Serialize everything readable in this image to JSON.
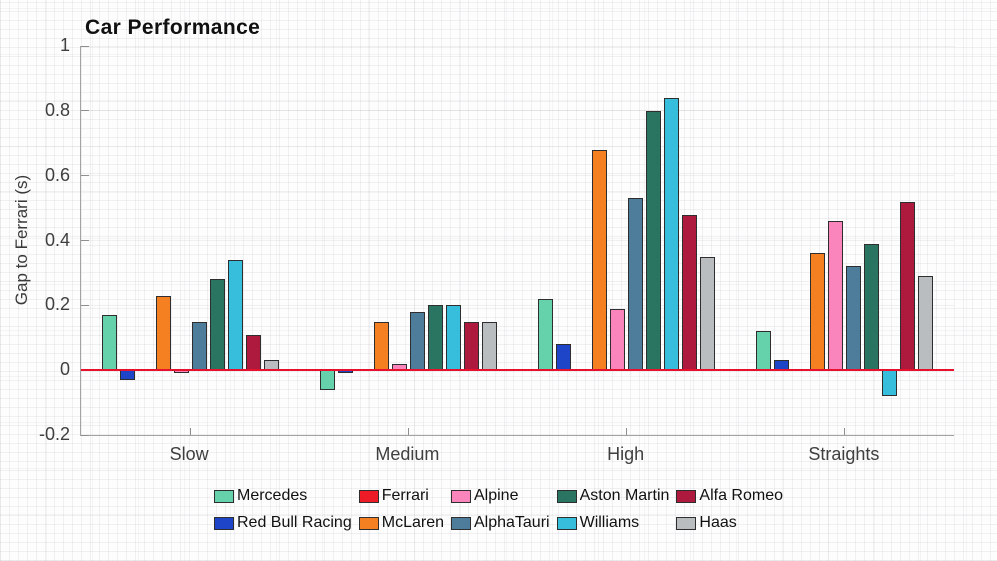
{
  "chart_data": {
    "type": "bar",
    "title": "Car Performance",
    "ylabel": "Gap to Ferrari (s)",
    "xlabel": "",
    "categories": [
      "Slow",
      "Medium",
      "High",
      "Straights"
    ],
    "series": [
      {
        "name": "Mercedes",
        "color": "#66D2AC",
        "values": [
          0.17,
          -0.06,
          0.22,
          0.12
        ]
      },
      {
        "name": "Red Bull Racing",
        "color": "#1E45C8",
        "values": [
          -0.03,
          -0.01,
          0.08,
          0.03
        ]
      },
      {
        "name": "Ferrari",
        "color": "#EC1B25",
        "values": [
          0,
          0,
          0,
          0
        ]
      },
      {
        "name": "McLaren",
        "color": "#F58021",
        "values": [
          0.23,
          0.15,
          0.68,
          0.36
        ]
      },
      {
        "name": "Alpine",
        "color": "#F985BC",
        "values": [
          -0.01,
          0.02,
          0.19,
          0.46
        ]
      },
      {
        "name": "AlphaTauri",
        "color": "#4E7C9B",
        "values": [
          0.15,
          0.18,
          0.53,
          0.32
        ]
      },
      {
        "name": "Aston Martin",
        "color": "#2A7462",
        "values": [
          0.28,
          0.2,
          0.8,
          0.39
        ]
      },
      {
        "name": "Williams",
        "color": "#37BEDD",
        "values": [
          0.34,
          0.2,
          0.84,
          -0.08
        ]
      },
      {
        "name": "Alfa Romeo",
        "color": "#AE1A3E",
        "values": [
          0.11,
          0.15,
          0.48,
          0.52
        ]
      },
      {
        "name": "Haas",
        "color": "#B9BDC0",
        "values": [
          0.03,
          0.15,
          0.35,
          0.29
        ]
      }
    ],
    "y_ticks": [
      -0.2,
      0,
      0.2,
      0.4,
      0.6,
      0.8,
      1
    ],
    "ylim": [
      -0.2,
      1.0
    ],
    "grid": "faint horizontal at ticks over graph-paper background",
    "zero_line_color": "#E8112D",
    "legend_position": "bottom",
    "legend_rows": 2,
    "legend_fill_order": "column-major"
  }
}
